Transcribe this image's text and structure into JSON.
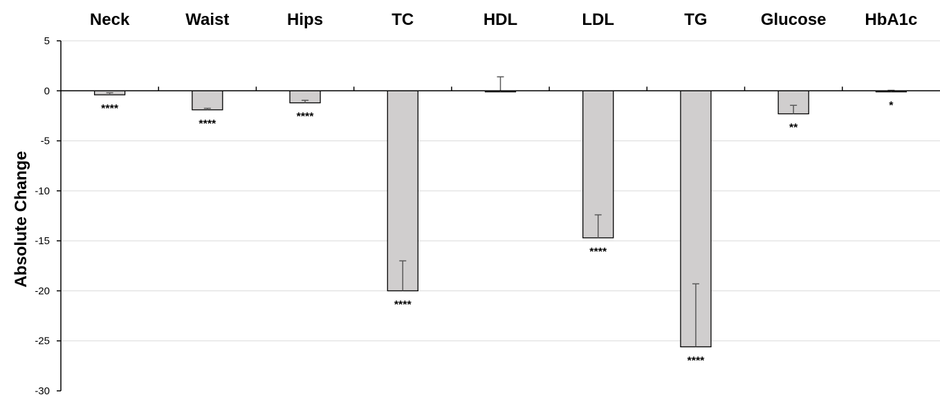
{
  "chart_data": {
    "type": "bar",
    "categories": [
      "Neck",
      "Waist",
      "Hips",
      "TC",
      "HDL",
      "LDL",
      "TG",
      "Glucose",
      "HbA1c"
    ],
    "values": [
      -0.4,
      -1.9,
      -1.2,
      -20.0,
      -0.1,
      -14.7,
      -25.6,
      -2.3,
      -0.1
    ],
    "error_bar_ends": [
      -0.2,
      -1.75,
      -0.95,
      -17.0,
      1.4,
      -12.4,
      -19.3,
      -1.45,
      0.05
    ],
    "significance": [
      "****",
      "****",
      "****",
      "****",
      "",
      "****",
      "****",
      "**",
      "*"
    ],
    "title": "",
    "xlabel": "",
    "ylabel": "Absolute Change",
    "ylim": [
      -30,
      5
    ],
    "yticks": [
      "5",
      "0",
      "-5",
      "-10",
      "-15",
      "-20",
      "-25",
      "-30"
    ],
    "grid": true,
    "category_labels_position": "top",
    "colors": {
      "bar_fill": "#d0cece",
      "bar_stroke": "#000000",
      "grid": "#d9d9d9",
      "axis": "#000000",
      "error_bar": "#595959"
    }
  }
}
